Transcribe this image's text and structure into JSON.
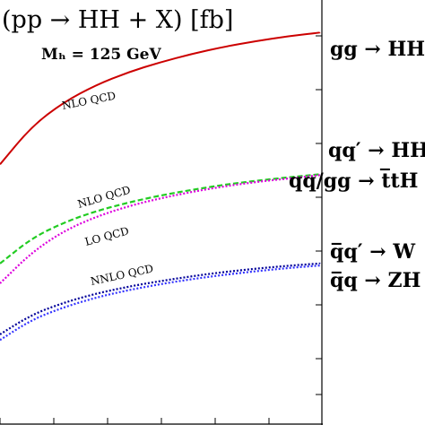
{
  "chart_data": {
    "type": "line",
    "title": "(pp → HH + X) [fb]",
    "subtitle": "M_H = 125 GeV",
    "series": [
      {
        "name": "gg → HH",
        "order": "NLO QCD",
        "color": "#cc0000",
        "style": "solid",
        "points": [
          [
            0,
            0.58
          ],
          [
            0.1,
            0.445
          ],
          [
            0.2,
            0.36
          ],
          [
            0.3,
            0.3
          ],
          [
            0.4,
            0.255
          ],
          [
            0.5,
            0.22
          ],
          [
            0.6,
            0.19
          ],
          [
            0.7,
            0.165
          ],
          [
            0.8,
            0.145
          ],
          [
            0.9,
            0.128
          ],
          [
            1,
            0.115
          ]
        ]
      },
      {
        "name": "qq′ → HHW",
        "order": "NLO QCD",
        "color": "#22cc22",
        "style": "dashed",
        "points": [
          [
            0,
            0.93
          ],
          [
            0.1,
            0.84
          ],
          [
            0.2,
            0.785
          ],
          [
            0.3,
            0.745
          ],
          [
            0.4,
            0.715
          ],
          [
            0.5,
            0.69
          ],
          [
            0.6,
            0.67
          ],
          [
            0.7,
            0.652
          ],
          [
            0.8,
            0.638
          ],
          [
            0.9,
            0.626
          ],
          [
            1,
            0.615
          ]
        ]
      },
      {
        "name": "qq/gg → t̅tHH",
        "order": "LO QCD",
        "color": "#dd00dd",
        "style": "dotted",
        "points": [
          [
            0,
            1.0
          ],
          [
            0.1,
            0.89
          ],
          [
            0.2,
            0.815
          ],
          [
            0.3,
            0.765
          ],
          [
            0.4,
            0.728
          ],
          [
            0.5,
            0.7
          ],
          [
            0.6,
            0.677
          ],
          [
            0.7,
            0.658
          ],
          [
            0.8,
            0.642
          ],
          [
            0.9,
            0.63
          ],
          [
            1,
            0.618
          ]
        ]
      },
      {
        "name": "q̅q′ → WHH",
        "order": "NNLO QCD",
        "color": "#000099",
        "style": "dotted",
        "points": [
          [
            0,
            1.18
          ],
          [
            0.1,
            1.11
          ],
          [
            0.2,
            1.068
          ],
          [
            0.3,
            1.036
          ],
          [
            0.4,
            1.012
          ],
          [
            0.5,
            0.992
          ],
          [
            0.6,
            0.975
          ],
          [
            0.7,
            0.96
          ],
          [
            0.8,
            0.948
          ],
          [
            0.9,
            0.938
          ],
          [
            1,
            0.93
          ]
        ]
      },
      {
        "name": "q̅q → ZHH",
        "order": "NNLO QCD",
        "color": "#3333ff",
        "style": "dotted",
        "points": [
          [
            0,
            1.2
          ],
          [
            0.1,
            1.128
          ],
          [
            0.2,
            1.084
          ],
          [
            0.3,
            1.05
          ],
          [
            0.4,
            1.024
          ],
          [
            0.5,
            1.003
          ],
          [
            0.6,
            0.985
          ],
          [
            0.7,
            0.97
          ],
          [
            0.8,
            0.957
          ],
          [
            0.9,
            0.946
          ],
          [
            1,
            0.937
          ]
        ]
      }
    ],
    "legend_position": "right",
    "grid": false
  },
  "labels": {
    "title": "(pp → HH + X) [fb]",
    "subtitle": "Mₕ = 125 GeV",
    "gg": "gg → HH",
    "qqW": "qq′ → HH",
    "tt": "qq/gg → t̅tH",
    "qbW": "q̅q′ → W",
    "qbZ": "q̅q → ZH",
    "ann_gg": "NLO QCD",
    "ann_qq": "NLO QCD",
    "ann_tt": "LO QCD",
    "ann_v": "NNLO QCD"
  }
}
